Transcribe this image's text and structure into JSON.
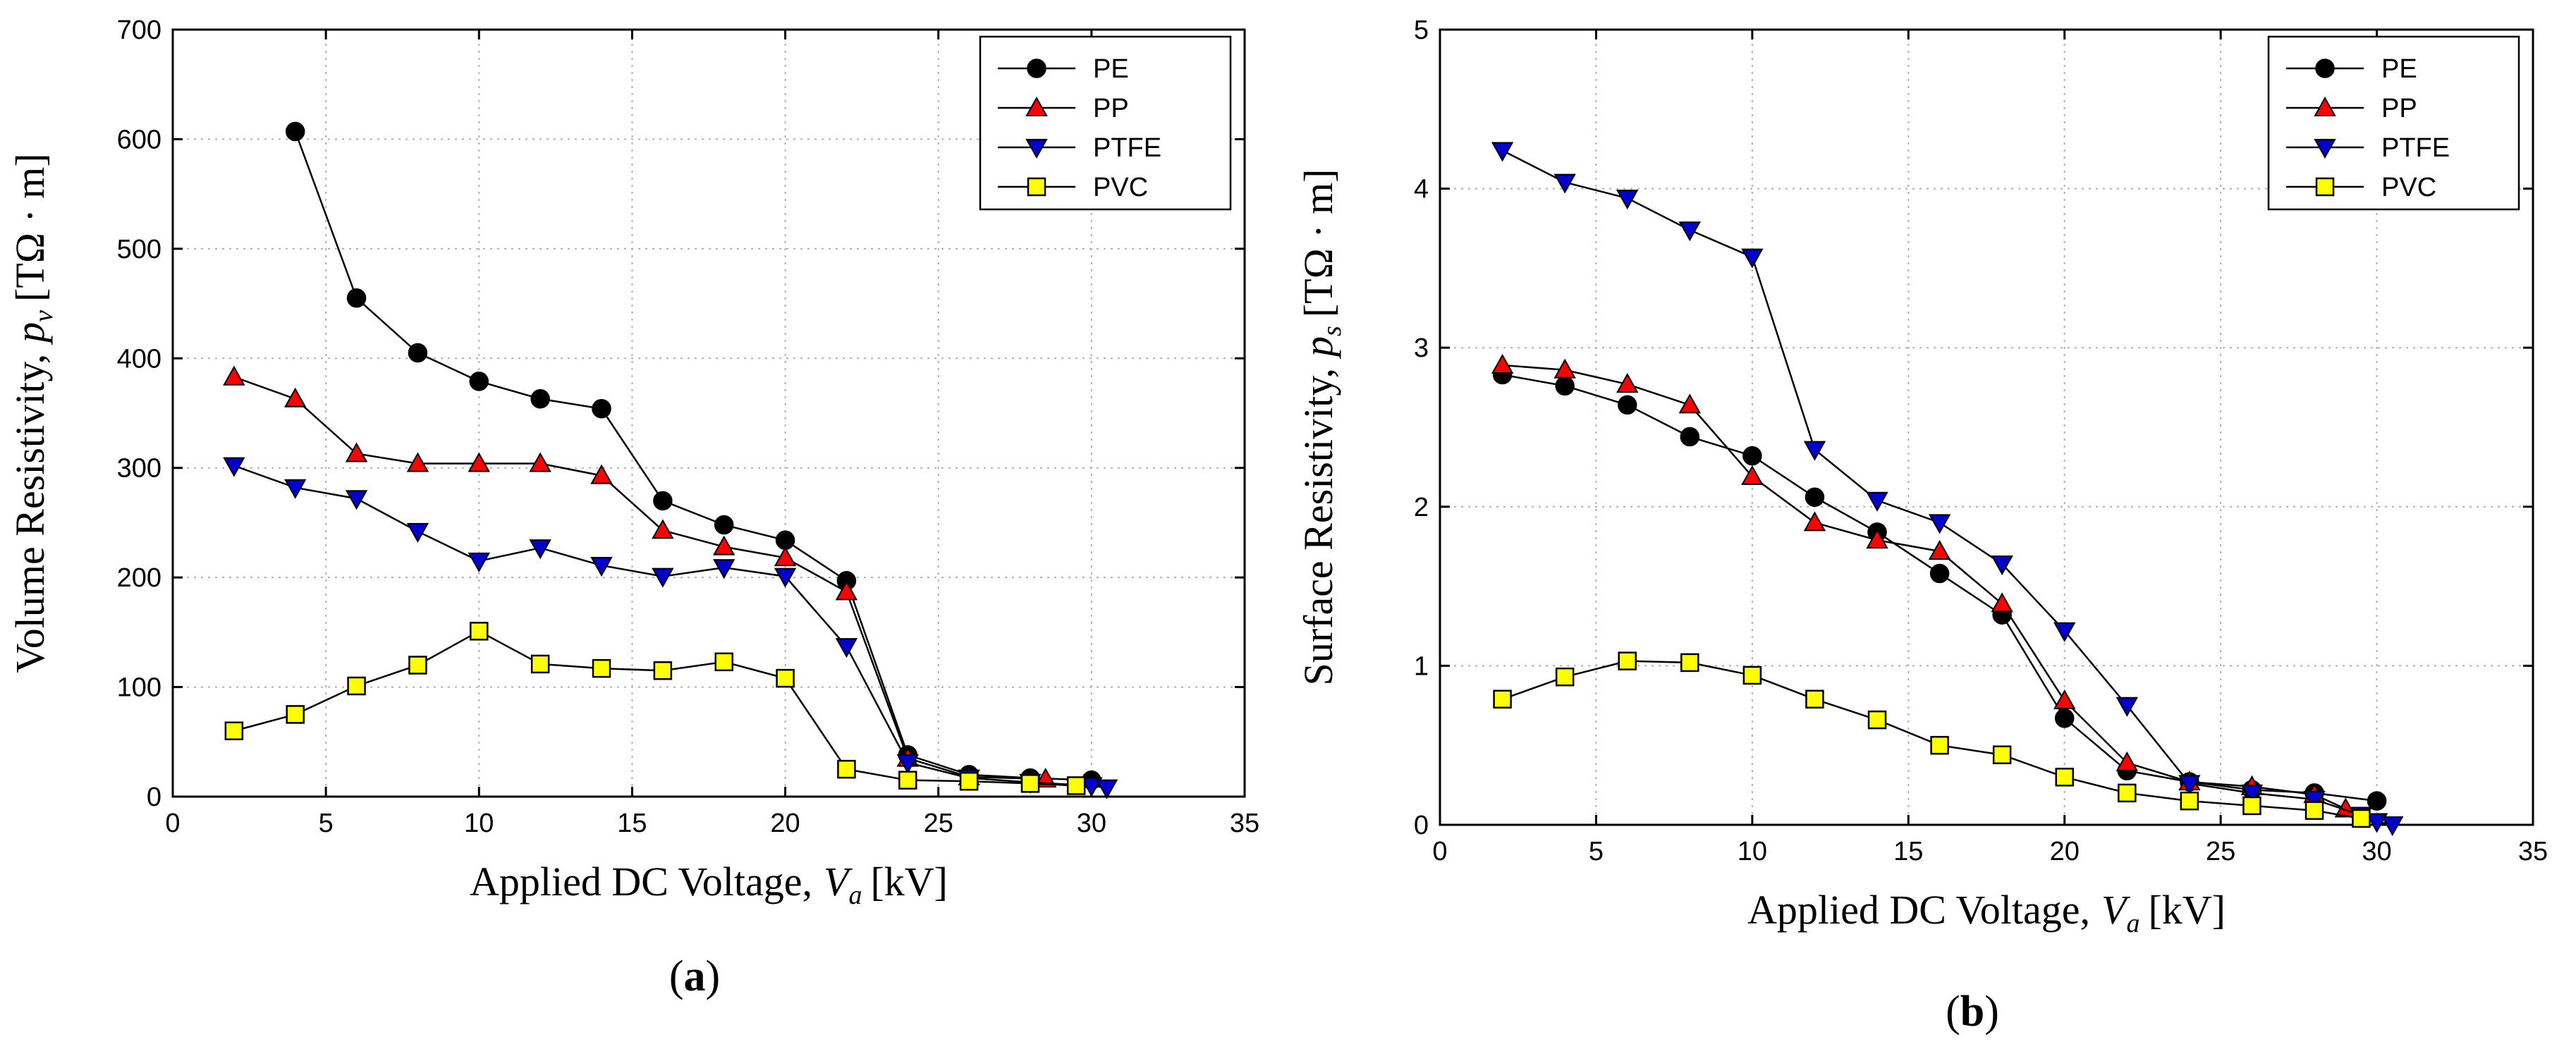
{
  "chart_data": [
    {
      "type": "line",
      "panel_label": "(a)",
      "panel_letter": "a",
      "title": "",
      "xlabel": "Applied DC Voltage,",
      "xlabel_var": "V",
      "xlabel_sub": "a",
      "xlabel_unit": "[kV]",
      "ylabel": "Volume Resistivity,",
      "ylabel_var": "p",
      "ylabel_sub": "v",
      "ylabel_unit": "[TΩ · m]",
      "xlim": [
        0,
        35
      ],
      "ylim": [
        0,
        700
      ],
      "xticks": [
        "0",
        "5",
        "10",
        "15",
        "20",
        "25",
        "30",
        "35"
      ],
      "yticks": [
        "0",
        "100",
        "200",
        "300",
        "400",
        "500",
        "600",
        "700"
      ],
      "grid": true,
      "legend_position": "top-right",
      "series": [
        {
          "name": "PE",
          "marker": "circle",
          "color": "#000000",
          "x": [
            4,
            6,
            8,
            10,
            12,
            14,
            16,
            18,
            20,
            22,
            24,
            26,
            28,
            30
          ],
          "y": [
            607,
            455,
            405,
            379,
            363,
            354,
            270,
            248,
            234,
            197,
            38,
            20,
            17,
            15
          ]
        },
        {
          "name": "PP",
          "marker": "triangle-up",
          "color": "#ff0000",
          "x": [
            2,
            4,
            6,
            8,
            10,
            12,
            14,
            16,
            18,
            20,
            22,
            24,
            26,
            28.5
          ],
          "y": [
            383,
            363,
            313,
            304,
            304,
            304,
            293,
            243,
            228,
            218,
            187,
            35,
            18,
            16
          ]
        },
        {
          "name": "PTFE",
          "marker": "triangle-down",
          "color": "#0000cc",
          "x": [
            2,
            4,
            6,
            8,
            10,
            12,
            14,
            16,
            18,
            20,
            22,
            24,
            26,
            28,
            30,
            30.5
          ],
          "y": [
            302,
            282,
            272,
            242,
            215,
            227,
            211,
            201,
            209,
            201,
            137,
            31,
            17,
            13,
            10,
            8
          ]
        },
        {
          "name": "PVC",
          "marker": "square",
          "color": "#ffff00",
          "x": [
            2,
            4,
            6,
            8,
            10,
            12,
            14,
            16,
            18,
            20,
            22,
            24,
            26,
            28,
            29.5
          ],
          "y": [
            60,
            75,
            101,
            120,
            151,
            121,
            117,
            115,
            123,
            108,
            25,
            15,
            14,
            12,
            10
          ]
        }
      ]
    },
    {
      "type": "line",
      "panel_label": "(b)",
      "panel_letter": "b",
      "title": "",
      "xlabel": "Applied DC Voltage,",
      "xlabel_var": "V",
      "xlabel_sub": "a",
      "xlabel_unit": "[kV]",
      "ylabel": "Surface Resistivity,",
      "ylabel_var": "p",
      "ylabel_sub": "s",
      "ylabel_unit": "[TΩ · m]",
      "xlim": [
        0,
        35
      ],
      "ylim": [
        0,
        5
      ],
      "xticks": [
        "0",
        "5",
        "10",
        "15",
        "20",
        "25",
        "30",
        "35"
      ],
      "yticks": [
        "0",
        "1",
        "2",
        "3",
        "4",
        "5"
      ],
      "grid": true,
      "legend_position": "top-right",
      "series": [
        {
          "name": "PE",
          "marker": "circle",
          "color": "#000000",
          "x": [
            2,
            4,
            6,
            8,
            10,
            12,
            14,
            16,
            18,
            20,
            22,
            24,
            26,
            28,
            30
          ],
          "y": [
            2.83,
            2.76,
            2.64,
            2.44,
            2.32,
            2.06,
            1.84,
            1.58,
            1.32,
            0.67,
            0.34,
            0.27,
            0.22,
            0.2,
            0.15
          ]
        },
        {
          "name": "PP",
          "marker": "triangle-up",
          "color": "#ff0000",
          "x": [
            2,
            4,
            6,
            8,
            10,
            12,
            14,
            16,
            18,
            20,
            22,
            24,
            26,
            28,
            29
          ],
          "y": [
            2.89,
            2.86,
            2.77,
            2.64,
            2.19,
            1.9,
            1.79,
            1.72,
            1.39,
            0.78,
            0.39,
            0.27,
            0.24,
            0.19,
            0.1
          ]
        },
        {
          "name": "PTFE",
          "marker": "triangle-down",
          "color": "#0000cc",
          "x": [
            2,
            4,
            6,
            8,
            10,
            12,
            14,
            16,
            18,
            20,
            22,
            24,
            26,
            28,
            29.5,
            30,
            30.5
          ],
          "y": [
            4.24,
            4.04,
            3.94,
            3.74,
            3.57,
            2.36,
            2.04,
            1.9,
            1.64,
            1.22,
            0.75,
            0.26,
            0.2,
            0.16,
            0.06,
            0.02,
            0.0
          ]
        },
        {
          "name": "PVC",
          "marker": "square",
          "color": "#ffff00",
          "x": [
            2,
            4,
            6,
            8,
            10,
            12,
            14,
            16,
            18,
            20,
            22,
            24,
            26,
            28,
            29.5
          ],
          "y": [
            0.79,
            0.93,
            1.03,
            1.02,
            0.94,
            0.79,
            0.66,
            0.5,
            0.44,
            0.3,
            0.2,
            0.15,
            0.12,
            0.09,
            0.04
          ]
        }
      ]
    }
  ]
}
